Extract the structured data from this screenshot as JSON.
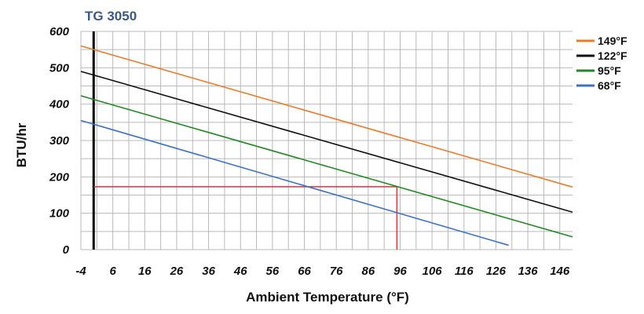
{
  "chart_data": {
    "type": "line",
    "title": "TG 3050",
    "xlabel": "Ambient Temperature (°F)",
    "ylabel": "BTU/hr",
    "xlim": [
      -4,
      150
    ],
    "ylim": [
      0,
      600
    ],
    "x_ticks": [
      -4,
      6,
      16,
      26,
      36,
      46,
      56,
      66,
      76,
      86,
      96,
      106,
      116,
      126,
      136,
      146
    ],
    "y_ticks": [
      0,
      100,
      200,
      300,
      400,
      500,
      600
    ],
    "grid": true,
    "legend_position": "top-right",
    "series": [
      {
        "name": "149°F",
        "color": "#f07a26",
        "x": [
          -4,
          150
        ],
        "y": [
          560,
          172
        ]
      },
      {
        "name": "122°F",
        "color": "#111111",
        "x": [
          -4,
          150
        ],
        "y": [
          490,
          103
        ]
      },
      {
        "name": "95°F",
        "color": "#1f8a1f",
        "x": [
          -4,
          150
        ],
        "y": [
          423,
          35
        ]
      },
      {
        "name": "68°F",
        "color": "#3a72c8",
        "x": [
          -4,
          130
        ],
        "y": [
          355,
          12
        ]
      }
    ],
    "reference_lines": [
      {
        "kind": "vertical",
        "x": 0,
        "color": "#000000",
        "width": 3
      },
      {
        "kind": "horizontal",
        "y": 173,
        "x_from": 0,
        "x_to": 95,
        "color": "#e0303a"
      },
      {
        "kind": "vertical",
        "x": 95,
        "y_from": 0,
        "y_to": 173,
        "color": "#e0303a"
      }
    ]
  }
}
